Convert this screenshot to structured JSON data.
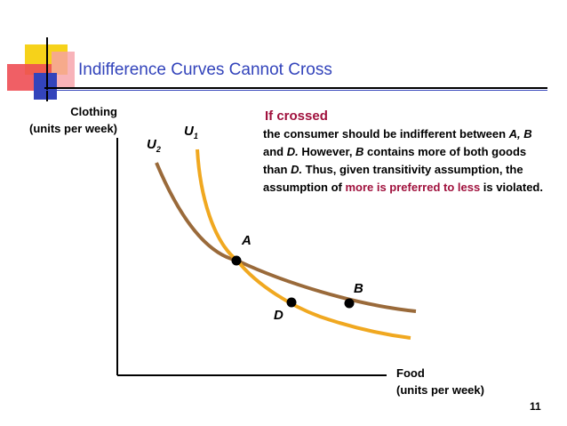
{
  "title": "Indifference Curves Cannot Cross",
  "axes": {
    "y_label_line1": "Clothing",
    "y_label_line2": "(units per week)",
    "x_label_line1": "Food",
    "x_label_line2": "(units per week)"
  },
  "curves": [
    {
      "id": "U1",
      "label_main": "U",
      "label_sub": "1",
      "color": "#f0a820"
    },
    {
      "id": "U2",
      "label_main": "U",
      "label_sub": "2",
      "color": "#9a6a3a"
    }
  ],
  "points": [
    {
      "label": "A"
    },
    {
      "label": "B"
    },
    {
      "label": "D"
    }
  ],
  "note": {
    "heading": "If crossed",
    "text_1": "the consumer should be indifferent between ",
    "text_a": "A, B",
    "text_2": " and ",
    "text_d": "D.",
    "text_3": "  However, ",
    "text_b": "B",
    "text_4": " contains more of both goods than ",
    "text_d2": "D.",
    "text_5": " Thus, given transitivity assumption, the assumption of ",
    "text_red": "more is preferred to less",
    "text_6": " is violated."
  },
  "page_number": "11",
  "colors": {
    "title": "#3344bb",
    "accent_red": "#a0113d",
    "deco_yellow": "#f6d21a",
    "deco_red": "#ee4e54",
    "deco_blue": "#3344bb"
  }
}
